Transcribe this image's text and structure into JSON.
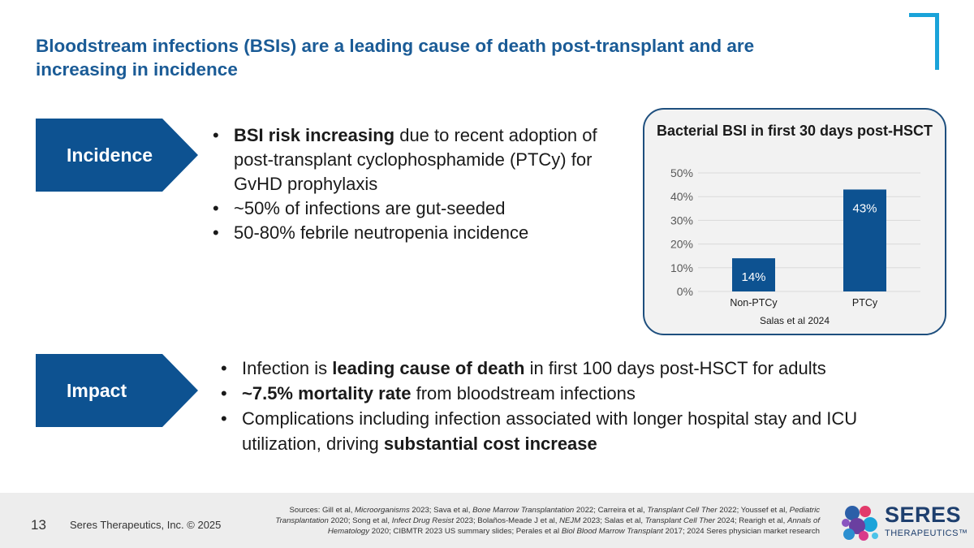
{
  "title": "Bloodstream infections (BSIs) are a leading cause of death post-transplant and are increasing in incidence",
  "sections": {
    "incidence": {
      "label": "Incidence",
      "bullets": [
        {
          "bold": "BSI risk increasing",
          "rest": " due to recent adoption of post-transplant cyclophosphamide (PTCy) for GvHD prophylaxis"
        },
        {
          "text": "~50% of infections are gut-seeded"
        },
        {
          "text": "50-80% febrile neutropenia incidence"
        }
      ]
    },
    "impact": {
      "label": "Impact",
      "bullets": [
        {
          "pre": "Infection is ",
          "bold": "leading cause of death",
          "post": " in first 100 days post-HSCT for adults"
        },
        {
          "bold": "~7.5% mortality rate",
          "post": " from bloodstream infections"
        },
        {
          "pre": "Complications including infection associated with longer hospital stay and ICU utilization, driving ",
          "bold": "substantial cost increase",
          "post": ""
        }
      ]
    }
  },
  "chart_data": {
    "type": "bar",
    "title": "Bacterial BSI in first 30 days post-HSCT",
    "categories": [
      "Non-PTCy",
      "PTCy"
    ],
    "values": [
      14,
      43
    ],
    "value_labels": [
      "14%",
      "43%"
    ],
    "yticks": [
      "0%",
      "10%",
      "20%",
      "30%",
      "40%",
      "50%"
    ],
    "ylim": [
      0,
      50
    ],
    "grid": true,
    "source": "Salas et al 2024",
    "bar_color": "#0d5291",
    "label_color": "#ffffff"
  },
  "footer": {
    "page_number": "13",
    "company": "Seres Therapeutics, Inc. © 2025",
    "sources": [
      {
        "t": "Sources:  Gill et al, "
      },
      {
        "i": "Microorganisms"
      },
      {
        "t": " 2023; Sava et al, "
      },
      {
        "i": "Bone Marrow Transplantation"
      },
      {
        "t": " 2022; Carreira et al, "
      },
      {
        "i": "Transplant Cell Ther"
      },
      {
        "t": " 2022; Youssef et al, "
      },
      {
        "i": "Pediatric Transplantation"
      },
      {
        "t": " 2020; Song et al, "
      },
      {
        "i": "Infect Drug Resist"
      },
      {
        "t": " 2023; Bolaños-Meade J et al, "
      },
      {
        "i": "NEJM"
      },
      {
        "t": " 2023; Salas et al, "
      },
      {
        "i": "Transplant Cell Ther"
      },
      {
        "t": " 2024; Rearigh et al, "
      },
      {
        "i": "Annals of Hematology"
      },
      {
        "t": " 2020; CIBMTR 2023 US summary slides; Perales et al "
      },
      {
        "i": "Biol Blood Marrow Transplant"
      },
      {
        "t": " 2017; 2024 Seres physician market research"
      }
    ],
    "logo_word": "SERES",
    "logo_sub": "THERAPEUTICS™"
  },
  "colors": {
    "title": "#1a5b96",
    "arrow": "#0d5291",
    "accent": "#1aa3d9"
  }
}
